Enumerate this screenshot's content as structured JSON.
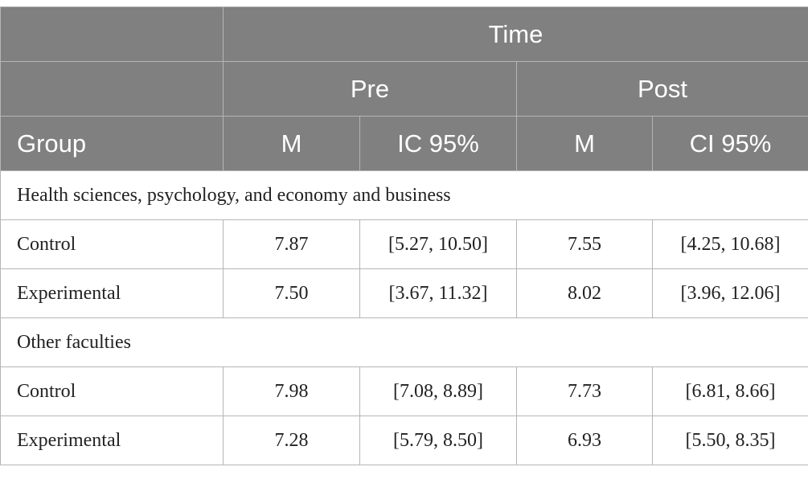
{
  "table": {
    "header": {
      "top": "Time",
      "pre": "Pre",
      "post": "Post",
      "columns": [
        "Group",
        "M",
        "IC 95%",
        "M",
        "CI 95%"
      ]
    },
    "sections": [
      {
        "title": "Health sciences, psychology, and economy and business",
        "rows": [
          [
            "Control",
            "7.87",
            "[5.27, 10.50]",
            "7.55",
            "[4.25, 10.68]"
          ],
          [
            "Experimental",
            "7.50",
            "[3.67, 11.32]",
            "8.02",
            "[3.96, 12.06]"
          ]
        ]
      },
      {
        "title": "Other faculties",
        "rows": [
          [
            "Control",
            "7.98",
            "[7.08, 8.89]",
            "7.73",
            "[6.81, 8.66]"
          ],
          [
            "Experimental",
            "7.28",
            "[5.79, 8.50]",
            "6.93",
            "[5.50, 8.35]"
          ]
        ]
      }
    ]
  }
}
